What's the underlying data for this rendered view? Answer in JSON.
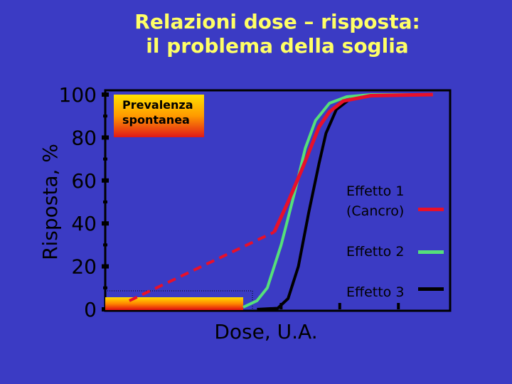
{
  "title": {
    "line1": "Relazioni dose – risposta:",
    "line2": "il problema della soglia"
  },
  "colors": {
    "background": "#3b3bc4",
    "title": "#ffff66",
    "effetto1": "#e8102a",
    "effetto2": "#55e07a",
    "effetto3": "#000000"
  },
  "chart_data": {
    "type": "line",
    "ylabel": "Risposta, %",
    "xlabel": "Dose, U.A.",
    "ylim": [
      0,
      100
    ],
    "xlim": [
      0,
      100
    ],
    "y_ticks": [
      "0",
      "20",
      "40",
      "60",
      "80",
      "100"
    ],
    "annotation": {
      "line1": "Prevalenza",
      "line2": "spontanea",
      "threshold_band": [
        0,
        40
      ]
    },
    "series": [
      {
        "name": "Effetto 1 (Cancro)",
        "label_line1": "Effetto 1",
        "label_line2": "(Cancro)",
        "color": "#e8102a",
        "extrapolated_segment": [
          [
            7,
            4
          ],
          [
            49,
            36
          ]
        ],
        "observed_segment": [
          [
            49,
            36
          ],
          [
            53,
            50
          ],
          [
            57,
            65
          ],
          [
            60,
            77
          ],
          [
            62,
            85
          ],
          [
            65,
            92
          ],
          [
            69,
            97
          ],
          [
            77,
            99.5
          ],
          [
            95,
            100
          ]
        ]
      },
      {
        "name": "Effetto 2",
        "color": "#55e07a",
        "points": [
          [
            40,
            1
          ],
          [
            44,
            4
          ],
          [
            47,
            10
          ],
          [
            51,
            30
          ],
          [
            55,
            55
          ],
          [
            58,
            75
          ],
          [
            61,
            88
          ],
          [
            65,
            96
          ],
          [
            70,
            99
          ],
          [
            77,
            100
          ],
          [
            95,
            100
          ]
        ]
      },
      {
        "name": "Effetto 3",
        "color": "#000000",
        "points": [
          [
            44,
            0
          ],
          [
            50,
            0.5
          ],
          [
            53,
            5
          ],
          [
            56,
            20
          ],
          [
            59,
            45
          ],
          [
            62,
            68
          ],
          [
            64,
            82
          ],
          [
            67,
            93
          ],
          [
            71,
            98
          ],
          [
            75,
            99.5
          ],
          [
            80,
            100
          ]
        ]
      }
    ]
  }
}
